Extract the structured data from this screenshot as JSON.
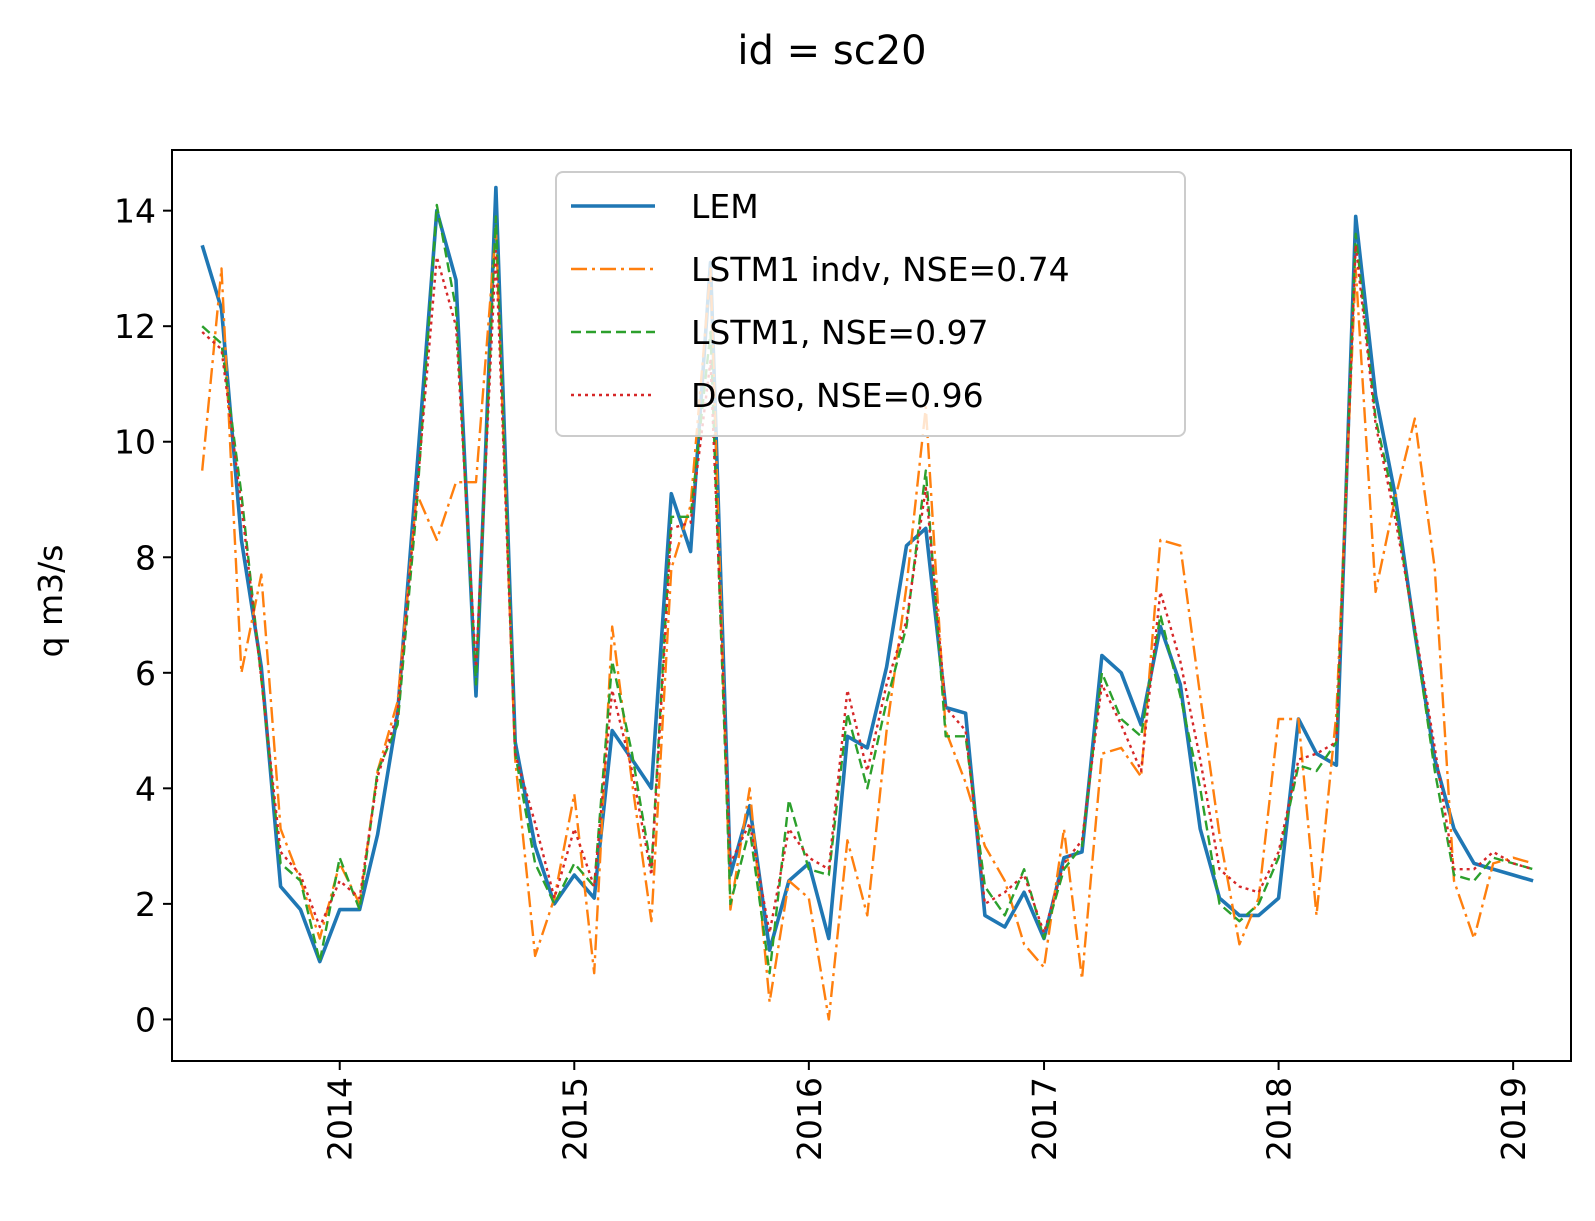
{
  "chart_data": {
    "type": "line",
    "title": "id = sc20",
    "xlabel": "",
    "ylabel": "q m3/s",
    "x_tick_labels": [
      "2014",
      "2015",
      "2016",
      "2017",
      "2018",
      "2019"
    ],
    "y_tick_labels": [
      "0",
      "2",
      "4",
      "6",
      "8",
      "10",
      "12",
      "14"
    ],
    "x_label_rotation": "vertical",
    "xlim": [
      "2013-04-15",
      "2019-04-01"
    ],
    "ylim": [
      -0.72,
      15.05
    ],
    "grid": false,
    "legend_position": "top-center",
    "x": [
      "2013-06",
      "2013-07",
      "2013-08",
      "2013-09",
      "2013-10",
      "2013-11",
      "2013-12",
      "2014-01",
      "2014-02",
      "2014-03",
      "2014-04",
      "2014-05",
      "2014-06",
      "2014-07",
      "2014-08",
      "2014-09",
      "2014-10",
      "2014-11",
      "2014-12",
      "2015-01",
      "2015-02",
      "2015-03",
      "2015-04",
      "2015-05",
      "2015-06",
      "2015-07",
      "2015-08",
      "2015-09",
      "2015-10",
      "2015-11",
      "2015-12",
      "2016-01",
      "2016-02",
      "2016-03",
      "2016-04",
      "2016-05",
      "2016-06",
      "2016-07",
      "2016-08",
      "2016-09",
      "2016-10",
      "2016-11",
      "2016-12",
      "2017-01",
      "2017-02",
      "2017-03",
      "2017-04",
      "2017-05",
      "2017-06",
      "2017-07",
      "2017-08",
      "2017-09",
      "2017-10",
      "2017-11",
      "2017-12",
      "2018-01",
      "2018-02",
      "2018-03",
      "2018-04",
      "2018-05",
      "2018-06",
      "2018-07",
      "2018-08",
      "2018-09",
      "2018-10",
      "2018-11",
      "2018-12",
      "2019-01",
      "2019-02"
    ],
    "series": [
      {
        "name": "LEM",
        "color": "#1f77b4",
        "style": "solid",
        "values": [
          13.4,
          12.3,
          8.3,
          6.1,
          2.3,
          1.9,
          1.0,
          1.9,
          1.9,
          3.2,
          5.3,
          9.5,
          14.0,
          12.8,
          5.6,
          14.4,
          4.8,
          3.0,
          2.0,
          2.5,
          2.1,
          5.0,
          4.5,
          4.0,
          9.1,
          8.1,
          13.1,
          2.5,
          3.7,
          1.2,
          2.4,
          2.7,
          1.4,
          4.9,
          4.7,
          6.1,
          8.2,
          8.5,
          5.4,
          5.3,
          1.8,
          1.6,
          2.2,
          1.4,
          2.8,
          2.9,
          6.3,
          6.0,
          5.1,
          6.8,
          5.8,
          3.3,
          2.1,
          1.8,
          1.8,
          2.1,
          5.2,
          4.6,
          4.4,
          13.9,
          10.8,
          9.1,
          6.7,
          4.5,
          3.3,
          2.7,
          2.6,
          2.5,
          2.4
        ]
      },
      {
        "name": "LSTM1 indv, NSE=0.74",
        "color": "#ff7f0e",
        "style": "dashdot",
        "values": [
          9.5,
          13.0,
          6.0,
          7.7,
          3.3,
          2.4,
          1.4,
          2.7,
          2.0,
          4.3,
          5.5,
          9.1,
          8.3,
          9.3,
          9.3,
          13.7,
          4.5,
          1.1,
          2.1,
          3.9,
          0.8,
          6.8,
          4.1,
          1.7,
          7.8,
          8.9,
          13.0,
          1.9,
          4.0,
          0.3,
          2.4,
          2.1,
          0.0,
          3.1,
          1.8,
          5.0,
          7.5,
          10.6,
          5.0,
          4.1,
          3.0,
          2.4,
          1.3,
          0.9,
          3.3,
          0.7,
          4.6,
          4.7,
          4.2,
          8.3,
          8.2,
          5.6,
          3.2,
          1.3,
          2.1,
          5.2,
          5.2,
          1.8,
          5.3,
          13.0,
          7.4,
          9.0,
          10.4,
          7.8,
          2.4,
          1.4,
          2.7,
          2.8,
          2.7
        ]
      },
      {
        "name": "LSTM1, NSE=0.97",
        "color": "#2ca02c",
        "style": "dashed",
        "values": [
          12.0,
          11.7,
          9.1,
          5.9,
          2.7,
          2.4,
          1.0,
          2.8,
          1.9,
          4.3,
          5.1,
          8.9,
          14.1,
          12.3,
          5.8,
          13.9,
          4.6,
          2.7,
          2.0,
          2.7,
          2.3,
          6.2,
          4.6,
          2.6,
          8.7,
          8.7,
          11.9,
          2.0,
          3.3,
          0.8,
          3.8,
          2.6,
          2.5,
          5.3,
          4.0,
          5.5,
          6.8,
          9.5,
          4.9,
          4.9,
          2.3,
          1.8,
          2.6,
          1.4,
          2.6,
          3.0,
          6.0,
          5.2,
          4.9,
          7.0,
          5.6,
          4.0,
          2.0,
          1.7,
          2.0,
          2.8,
          4.4,
          4.3,
          4.8,
          13.6,
          10.4,
          8.9,
          6.7,
          4.3,
          2.5,
          2.4,
          2.8,
          2.7,
          2.6
        ]
      },
      {
        "name": "Denso, NSE=0.96",
        "color": "#d62728",
        "style": "dotted",
        "values": [
          11.9,
          11.6,
          8.9,
          5.9,
          2.9,
          2.5,
          1.6,
          2.4,
          2.1,
          4.2,
          5.3,
          9.1,
          13.2,
          12.0,
          6.1,
          13.3,
          4.6,
          3.4,
          2.1,
          3.3,
          2.3,
          5.7,
          4.3,
          2.5,
          8.5,
          8.6,
          11.4,
          2.7,
          3.4,
          1.5,
          3.3,
          2.8,
          2.6,
          5.7,
          4.3,
          5.8,
          6.9,
          9.2,
          5.4,
          5.0,
          2.0,
          2.2,
          2.5,
          1.5,
          2.7,
          3.1,
          5.8,
          5.1,
          4.3,
          7.4,
          6.2,
          4.5,
          2.6,
          2.3,
          2.2,
          2.9,
          4.5,
          4.6,
          4.8,
          13.4,
          10.3,
          8.7,
          6.8,
          4.7,
          2.6,
          2.6,
          2.9,
          2.7,
          2.6
        ]
      }
    ]
  }
}
